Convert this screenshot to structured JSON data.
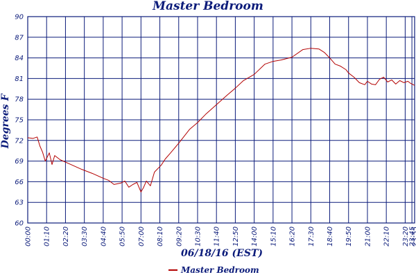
{
  "chart_data": {
    "type": "line",
    "title": "Master Bedroom",
    "xlabel": "06/18/16 (EST)",
    "ylabel": "Degrees F",
    "ylim": [
      60,
      90
    ],
    "yticks": [
      60,
      63,
      66,
      69,
      72,
      75,
      78,
      81,
      84,
      87,
      90
    ],
    "ytick_labels": [
      "60",
      "63",
      "66",
      "69",
      "72",
      "75",
      "78",
      "81",
      "84",
      "87",
      "90"
    ],
    "xlim": [
      0,
      1435
    ],
    "xticks": [
      0,
      70,
      140,
      210,
      280,
      350,
      420,
      490,
      560,
      630,
      700,
      770,
      840,
      910,
      980,
      1050,
      1120,
      1190,
      1260,
      1330,
      1400,
      1425,
      1435
    ],
    "xtick_labels": [
      "00:00",
      "01:10",
      "02:20",
      "03:30",
      "04:40",
      "05:50",
      "07:00",
      "08:10",
      "09:20",
      "10:30",
      "11:40",
      "12:50",
      "14:00",
      "15:10",
      "16:20",
      "17:30",
      "18:40",
      "19:50",
      "21:00",
      "22:10",
      "23:20",
      "23:45",
      "23:55"
    ],
    "grid": true,
    "legend_position": "bottom",
    "line_color": "#b30000",
    "grid_color": "#0b1b7a",
    "text_color": "#0b1b7a",
    "series": [
      {
        "name": "Master Bedroom",
        "x": [
          0,
          20,
          35,
          45,
          55,
          65,
          80,
          90,
          100,
          120,
          160,
          200,
          240,
          280,
          300,
          320,
          345,
          360,
          375,
          390,
          405,
          420,
          430,
          440,
          455,
          470,
          480,
          495,
          510,
          530,
          560,
          600,
          630,
          660,
          700,
          740,
          770,
          800,
          840,
          880,
          910,
          940,
          980,
          1020,
          1050,
          1080,
          1100,
          1120,
          1140,
          1160,
          1180,
          1190,
          1210,
          1230,
          1250,
          1260,
          1275,
          1290,
          1305,
          1320,
          1335,
          1350,
          1365,
          1380,
          1395,
          1410,
          1420,
          1435
        ],
        "values": [
          72.4,
          72.3,
          72.5,
          71.2,
          70.3,
          69.0,
          70.2,
          68.5,
          69.8,
          69.2,
          68.5,
          67.8,
          67.2,
          66.5,
          66.2,
          65.6,
          65.8,
          66.1,
          65.2,
          65.6,
          65.9,
          64.5,
          65.2,
          66.1,
          65.4,
          67.4,
          67.8,
          68.4,
          69.3,
          70.2,
          71.6,
          73.6,
          74.6,
          75.8,
          77.2,
          78.6,
          79.6,
          80.7,
          81.6,
          83.1,
          83.5,
          83.7,
          84.1,
          85.2,
          85.4,
          85.3,
          84.8,
          84.0,
          83.1,
          82.8,
          82.3,
          81.8,
          81.2,
          80.4,
          80.1,
          80.6,
          80.2,
          80.1,
          80.9,
          81.2,
          80.5,
          80.8,
          80.2,
          80.7,
          80.4,
          80.6,
          80.3,
          80.0
        ]
      }
    ]
  }
}
